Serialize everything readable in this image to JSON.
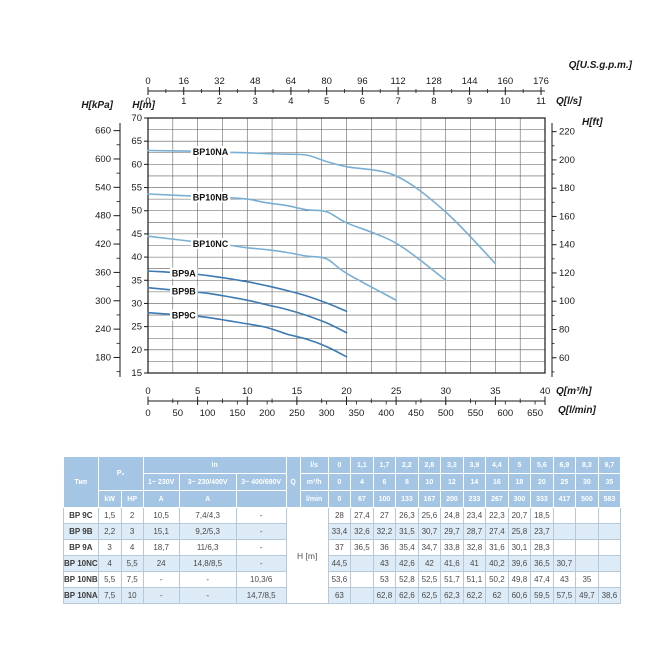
{
  "colors": {
    "curve_bp10": "#7AAFD4",
    "curve_bp9": "#3D7AB3",
    "grid": "#5a5a5a",
    "frame": "#1a1a1a",
    "table_header_bg": "#A4C6E4",
    "row_alt_bg": "#DCEBF6"
  },
  "chart": {
    "top_axis": {
      "gpm_title": "Q[U.S.g.p.m.]",
      "gpm_ticks": [
        0,
        16,
        32,
        48,
        64,
        80,
        96,
        112,
        128,
        144,
        160,
        176
      ],
      "ls_title": "Q[l/s]",
      "ls_ticks": [
        0,
        1,
        2,
        3,
        4,
        5,
        6,
        7,
        8,
        9,
        10,
        11
      ]
    },
    "left_axis": {
      "kpa_title": "H[kPa]",
      "kpa_ticks": [
        660,
        600,
        540,
        480,
        420,
        360,
        300,
        240,
        180
      ],
      "m_title": "H[m]",
      "m_ticks": [
        70,
        65,
        60,
        55,
        50,
        45,
        40,
        35,
        30,
        25,
        20,
        15
      ]
    },
    "right_axis": {
      "ft_title": "H[ft]",
      "ft_ticks": [
        220,
        200,
        180,
        160,
        140,
        120,
        100,
        80,
        60
      ]
    },
    "bottom_axis": {
      "m3h_title": "Q[m³/h]",
      "m3h_ticks": [
        0,
        5,
        10,
        15,
        20,
        25,
        30,
        35,
        40
      ],
      "lmin_title": "Q[l/min]",
      "lmin_ticks": [
        0,
        50,
        100,
        150,
        200,
        250,
        300,
        350,
        400,
        450,
        500,
        550,
        600,
        650
      ]
    }
  },
  "chart_data": {
    "type": "line",
    "xlabel": "Q[m³/h]",
    "ylabel": "H[m]",
    "xlim": [
      0,
      40
    ],
    "ylim": [
      15,
      70
    ],
    "grid_step_x": 2.5,
    "grid_step_y": 2.5,
    "series": [
      {
        "name": "BP10NA",
        "color_key": "curve_bp10",
        "label_q": 6.3,
        "x": [
          0,
          6,
          8,
          10,
          12,
          14,
          16,
          18,
          20,
          25,
          30,
          35
        ],
        "y": [
          63,
          62.8,
          62.6,
          62.5,
          62.3,
          62.2,
          62,
          60.6,
          59.5,
          57.5,
          49.7,
          38.6
        ]
      },
      {
        "name": "BP10NB",
        "color_key": "curve_bp10",
        "label_q": 6.3,
        "x": [
          0,
          6,
          8,
          10,
          12,
          14,
          16,
          18,
          20,
          25,
          30
        ],
        "y": [
          53.6,
          53,
          52.8,
          52.5,
          51.7,
          51.1,
          50.2,
          49.8,
          47.4,
          43,
          35
        ]
      },
      {
        "name": "BP10NC",
        "color_key": "curve_bp10",
        "label_q": 6.3,
        "x": [
          0,
          6,
          8,
          10,
          12,
          14,
          16,
          18,
          20,
          25
        ],
        "y": [
          44.5,
          43,
          42.6,
          42,
          41.6,
          41,
          40.2,
          39.6,
          36.5,
          30.7
        ]
      },
      {
        "name": "BP9A",
        "color_key": "curve_bp9",
        "label_q": 3.6,
        "x": [
          0,
          4,
          6,
          8,
          10,
          12,
          14,
          16,
          18,
          20
        ],
        "y": [
          37,
          36.5,
          36,
          35.4,
          34.7,
          33.8,
          32.8,
          31.6,
          30.1,
          28.3
        ]
      },
      {
        "name": "BP9B",
        "color_key": "curve_bp9",
        "label_q": 3.6,
        "x": [
          0,
          4,
          6,
          8,
          10,
          12,
          14,
          16,
          18,
          20
        ],
        "y": [
          33.4,
          32.6,
          32.2,
          31.5,
          30.7,
          29.7,
          28.7,
          27.4,
          25.8,
          23.7
        ]
      },
      {
        "name": "BP9C",
        "color_key": "curve_bp9",
        "label_q": 3.6,
        "x": [
          0,
          4,
          6,
          8,
          10,
          12,
          14,
          16,
          18,
          20
        ],
        "y": [
          28,
          27.4,
          27,
          26.3,
          25.6,
          24.8,
          23.4,
          22.3,
          20.7,
          18.5
        ]
      }
    ]
  },
  "table": {
    "col_type": "Тип",
    "col_p2": "P₂",
    "p2_units": [
      "kW",
      "HP"
    ],
    "col_in": "In",
    "in_sub": [
      "1~ 230V",
      "3~ 230/400V",
      "3~ 400/690V"
    ],
    "in_units": [
      "A",
      "A",
      ""
    ],
    "col_q": "Q",
    "q_rows": [
      {
        "unit": "l/s",
        "values": [
          "0",
          "1,1",
          "1,7",
          "2,2",
          "2,8",
          "3,3",
          "3,9",
          "4,4",
          "5",
          "5,6",
          "6,9",
          "8,3",
          "9,7"
        ]
      },
      {
        "unit": "m³/h",
        "values": [
          "0",
          "4",
          "6",
          "8",
          "10",
          "12",
          "14",
          "16",
          "18",
          "20",
          "25",
          "30",
          "35"
        ]
      },
      {
        "unit": "l/min",
        "values": [
          "0",
          "67",
          "100",
          "133",
          "167",
          "200",
          "233",
          "267",
          "300",
          "333",
          "417",
          "500",
          "583"
        ]
      }
    ],
    "body_label": "H [m]",
    "rows": [
      {
        "name": "BP 9C",
        "kw": "1,5",
        "hp": "2",
        "a230": "10,5",
        "a400": "7,4/4,3",
        "a690": "-",
        "h": [
          "28",
          "27,4",
          "27",
          "26,3",
          "25,6",
          "24,8",
          "23,4",
          "22,3",
          "20,7",
          "18,5",
          "",
          "",
          ""
        ]
      },
      {
        "name": "BP 9B",
        "kw": "2,2",
        "hp": "3",
        "a230": "15,1",
        "a400": "9,2/5,3",
        "a690": "-",
        "h": [
          "33,4",
          "32,6",
          "32,2",
          "31,5",
          "30,7",
          "29,7",
          "28,7",
          "27,4",
          "25,8",
          "23,7",
          "",
          "",
          ""
        ]
      },
      {
        "name": "BP 9A",
        "kw": "3",
        "hp": "4",
        "a230": "18,7",
        "a400": "11/6,3",
        "a690": "-",
        "h": [
          "37",
          "36,5",
          "36",
          "35,4",
          "34,7",
          "33,8",
          "32,8",
          "31,6",
          "30,1",
          "28,3",
          "",
          "",
          ""
        ]
      },
      {
        "name": "BP 10NC",
        "kw": "4",
        "hp": "5,5",
        "a230": "24",
        "a400": "14,8/8,5",
        "a690": "-",
        "h": [
          "44,5",
          "",
          "43",
          "42,6",
          "42",
          "41,6",
          "41",
          "40,2",
          "39,6",
          "36,5",
          "30,7",
          "",
          ""
        ]
      },
      {
        "name": "BP 10NB",
        "kw": "5,5",
        "hp": "7,5",
        "a230": "-",
        "a400": "-",
        "a690": "10,3/6",
        "h": [
          "53,6",
          "",
          "53",
          "52,8",
          "52,5",
          "51,7",
          "51,1",
          "50,2",
          "49,8",
          "47,4",
          "43",
          "35",
          ""
        ]
      },
      {
        "name": "BP 10NA",
        "kw": "7,5",
        "hp": "10",
        "a230": "-",
        "a400": "-",
        "a690": "14,7/8,5",
        "h": [
          "63",
          "",
          "62,8",
          "62,6",
          "62,5",
          "62,3",
          "62,2",
          "62",
          "60,6",
          "59,5",
          "57,5",
          "49,7",
          "38,6"
        ]
      }
    ]
  }
}
